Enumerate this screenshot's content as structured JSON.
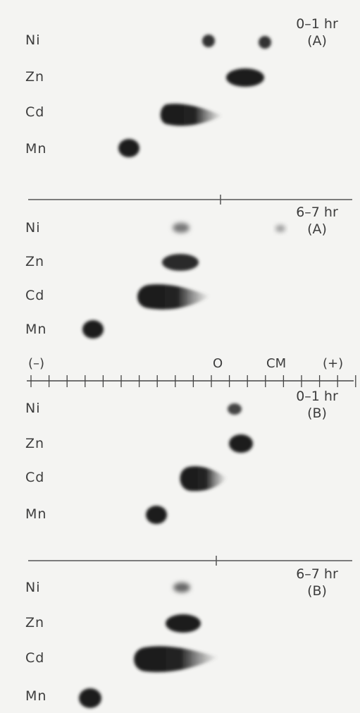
{
  "axis": {
    "minus": "(–)",
    "zero": "O",
    "unit": "CM",
    "plus": "(+)"
  },
  "panels": [
    {
      "time": "0–1 hr",
      "condition": "(A)",
      "labels": [
        "Ni",
        "Zn",
        "Cd",
        "Mn"
      ]
    },
    {
      "time": "6–7 hr",
      "condition": "(A)",
      "labels": [
        "Ni",
        "Zn",
        "Cd",
        "Mn"
      ]
    },
    {
      "time": "0–1 hr",
      "condition": "(B)",
      "labels": [
        "Ni",
        "Zn",
        "Cd",
        "Mn"
      ]
    },
    {
      "time": "6–7 hr",
      "condition": "(B)",
      "labels": [
        "Ni",
        "Zn",
        "Cd",
        "Mn"
      ]
    }
  ]
}
